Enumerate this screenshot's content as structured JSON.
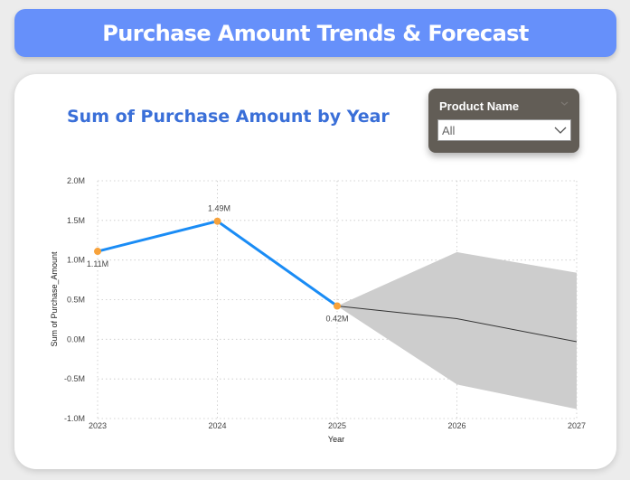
{
  "header": {
    "title": "Purchase Amount Trends & Forecast"
  },
  "slicer": {
    "label": "Product Name",
    "value": "All"
  },
  "chart_data": {
    "type": "line",
    "title": "Sum of Purchase Amount by Year",
    "xlabel": "Year",
    "ylabel": "Sum of Purchase_Amount",
    "x": [
      2023,
      2024,
      2025,
      2026,
      2027
    ],
    "xlim": [
      2023,
      2027
    ],
    "ylim": [
      -1000000,
      2000000
    ],
    "y_ticks": [
      2000000,
      1500000,
      1000000,
      500000,
      0,
      -500000,
      -1000000
    ],
    "y_tick_labels": [
      "2.0M",
      "1.5M",
      "1.0M",
      "0.5M",
      "0.0M",
      "-0.5M",
      "-1.0M"
    ],
    "x_tick_labels": [
      "2023",
      "2024",
      "2025",
      "2026",
      "2027"
    ],
    "grid": true,
    "series": [
      {
        "x": [
          2023,
          2024,
          2025
        ],
        "values": [
          1110000,
          1490000,
          420000
        ],
        "labels": [
          "1.11M",
          "1.49M",
          "0.42M"
        ],
        "color": "#1a8cf5",
        "marker_color": "#f7a23b"
      }
    ],
    "forecast": {
      "x": [
        2025,
        2026,
        2027
      ],
      "values": [
        420000,
        260000,
        -30000
      ],
      "upper": [
        420000,
        1100000,
        840000
      ],
      "lower": [
        420000,
        -570000,
        -880000
      ],
      "line_color": "#333333",
      "band_color": "#cdcdcd"
    }
  }
}
